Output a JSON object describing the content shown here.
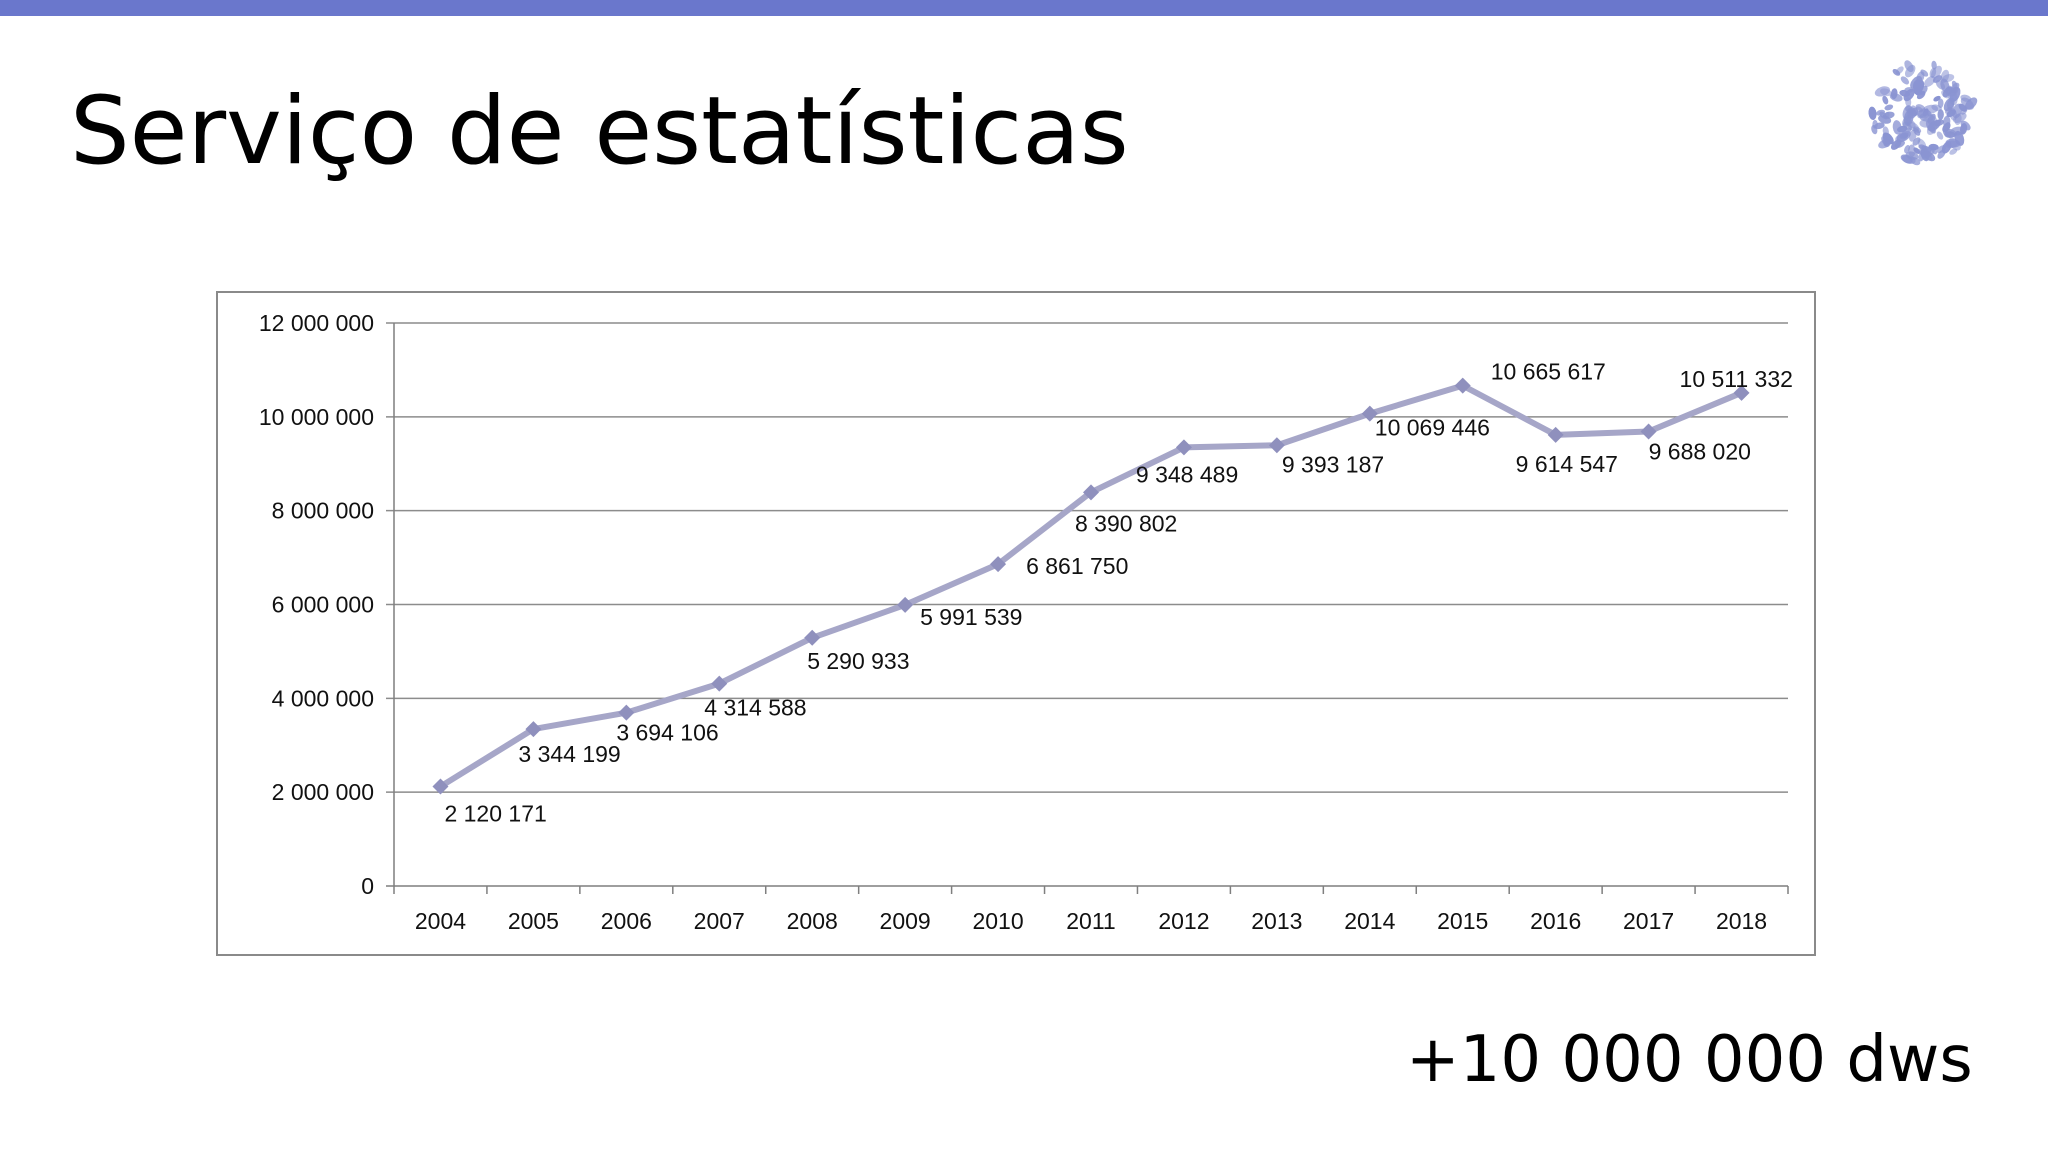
{
  "slide": {
    "title": "Serviço de estatísticas",
    "footer_note": "+10 000 000 dws",
    "accent_color": "#6a77cc"
  },
  "logo": {
    "icon": "flower-cluster-icon",
    "color": "#8a94d2"
  },
  "chart_data": {
    "type": "line",
    "title": "",
    "xlabel": "",
    "ylabel": "",
    "categories": [
      "2004",
      "2005",
      "2006",
      "2007",
      "2008",
      "2009",
      "2010",
      "2011",
      "2012",
      "2013",
      "2014",
      "2015",
      "2016",
      "2017",
      "2018"
    ],
    "series": [
      {
        "values": [
          2120171,
          3344199,
          3694106,
          4314588,
          5290933,
          5991539,
          6861750,
          8390802,
          9348489,
          9393187,
          10069446,
          10665617,
          9614547,
          9688020,
          10511332
        ],
        "color": "#a6a6c8",
        "marker": "diamond",
        "marker_color": "#8f90bd"
      }
    ],
    "data_labels": [
      "2 120 171",
      "3 344 199",
      "3 694 106",
      "4 314 588",
      "5 290 933",
      "5 991 539",
      "6 861 750",
      "8 390 802",
      "9 348 489",
      "9 393 187",
      "10 069 446",
      "10 665 617",
      "9 614 547",
      "9 688 020",
      "10 511 332"
    ],
    "y_ticks": [
      0,
      2000000,
      4000000,
      6000000,
      8000000,
      10000000,
      12000000
    ],
    "y_tick_labels": [
      "0",
      "2 000 000",
      "4 000 000",
      "6 000 000",
      "8 000 000",
      "10 000 000",
      "12 000 000"
    ],
    "ylim": [
      0,
      12000000
    ],
    "grid": true,
    "legend": "none"
  }
}
